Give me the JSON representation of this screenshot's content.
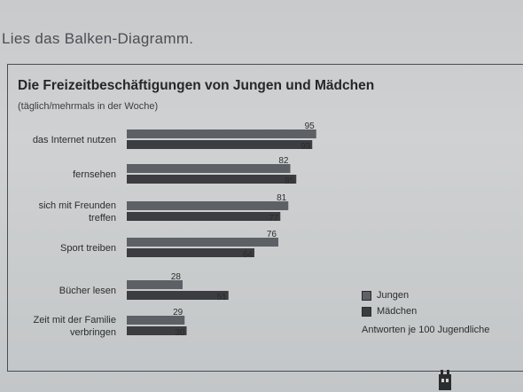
{
  "header": {
    "instruction": "Lies das Balken-Diagramm."
  },
  "colors": {
    "jungen": "#5d6064",
    "maedchen": "#3b3d40"
  },
  "chart_data": {
    "type": "bar",
    "orientation": "horizontal",
    "title": "Die Freizeitbeschäftigungen von Jungen und Mädchen",
    "subtitle": "(täglich/mehrmals in der Woche)",
    "categories": [
      [
        "das Internet nutzen"
      ],
      [
        "fernsehen"
      ],
      [
        "sich mit Freunden",
        "treffen"
      ],
      [
        "Sport treiben"
      ],
      [
        "Bücher lesen"
      ],
      [
        "Zeit mit der Familie",
        "verbringen"
      ]
    ],
    "series": [
      {
        "name": "Jungen",
        "values": [
          95,
          82,
          81,
          76,
          28,
          29
        ]
      },
      {
        "name": "Mädchen",
        "values": [
          93,
          85,
          77,
          64,
          51,
          30
        ]
      }
    ],
    "xlim": [
      0,
      100
    ],
    "grid": false,
    "legend": "right",
    "note": "Antworten je 100 Jugendliche"
  }
}
